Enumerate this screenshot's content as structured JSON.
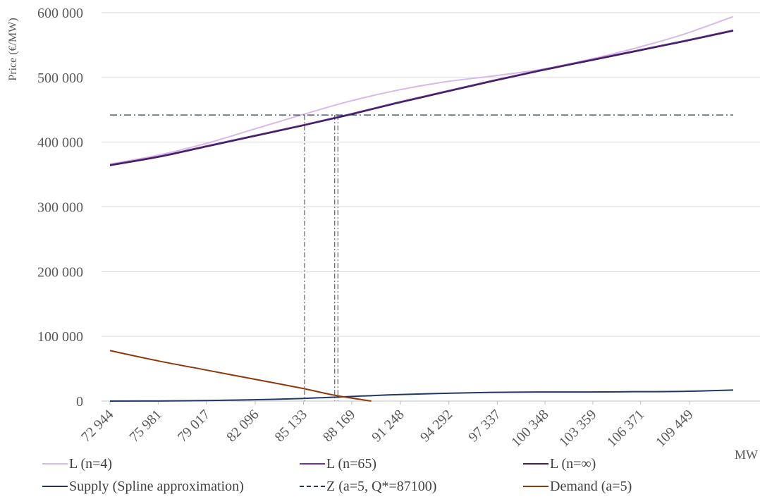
{
  "chart_data": {
    "type": "line",
    "ylabel": "Price (€/MW)",
    "xlabel": "MW",
    "ylim": [
      0,
      600000
    ],
    "y_ticks": [
      0,
      100000,
      200000,
      300000,
      400000,
      500000,
      600000
    ],
    "y_tick_labels": [
      "0",
      "100 000",
      "200 000",
      "300 000",
      "400 000",
      "500 000",
      "600 000"
    ],
    "x_tick_labels": [
      "72 944",
      "75 981",
      "79 017",
      "82 096",
      "85 133",
      "88 169",
      "91 248",
      "94 292",
      "97 337",
      "100 348",
      "103 359",
      "106 371",
      "109 449"
    ],
    "x_tick_values": [
      72944,
      75981,
      79017,
      82096,
      85133,
      88169,
      91248,
      94292,
      97337,
      100348,
      103359,
      106371,
      109449
    ],
    "xlim": [
      72944,
      112200
    ],
    "grid": "horizontal",
    "legend_position": "bottom",
    "series": [
      {
        "name": "L (n=4)",
        "color": "#d8b8e8",
        "style": "solid",
        "x": [
          72944,
          76000,
          79000,
          82000,
          85000,
          88000,
          91000,
          94000,
          97000,
          100000,
          103000,
          106000,
          109000,
          112200
        ],
        "y": [
          366000,
          380000,
          398000,
          420000,
          442000,
          463000,
          480000,
          493000,
          502000,
          512000,
          527000,
          545000,
          566000,
          594000
        ]
      },
      {
        "name": "L (n=65)",
        "color": "#7030a0",
        "style": "solid",
        "x": [
          72944,
          76000,
          79000,
          82000,
          85000,
          88000,
          91000,
          94000,
          97000,
          100000,
          103000,
          106000,
          109000,
          112200
        ],
        "y": [
          365000,
          378000,
          394000,
          410000,
          426000,
          443000,
          461000,
          478000,
          495000,
          511000,
          526000,
          541000,
          556000,
          573000
        ]
      },
      {
        "name": "L (n=∞)",
        "color": "#3f1f5c",
        "style": "solid",
        "x": [
          72944,
          76000,
          79000,
          82000,
          85000,
          88000,
          91000,
          94000,
          97000,
          100000,
          103000,
          106000,
          109000,
          112200
        ],
        "y": [
          364000,
          377000,
          393000,
          409000,
          425000,
          442000,
          460000,
          477000,
          494000,
          510000,
          525000,
          540000,
          555000,
          572000
        ]
      },
      {
        "name": "Supply (Spline approximation)",
        "color": "#1f3864",
        "style": "solid",
        "x": [
          72944,
          76000,
          79000,
          82000,
          85000,
          86500,
          88000,
          89500,
          91000,
          94000,
          97000,
          100000,
          103000,
          106000,
          109000,
          112200
        ],
        "y": [
          0,
          200,
          800,
          2000,
          4000,
          5500,
          7000,
          8500,
          10000,
          12000,
          13500,
          14000,
          14000,
          14500,
          15000,
          17000
        ]
      },
      {
        "name": "Z (a=5, Q*=87100)",
        "color": "#1f3864",
        "style": "dashdot",
        "x": [
          72944,
          112200
        ],
        "y": [
          442000,
          442000
        ]
      },
      {
        "name": "Demand (a=5)",
        "color": "#8b3a0e",
        "style": "solid",
        "x": [
          72944,
          76000,
          79000,
          82000,
          85000,
          87100,
          89400
        ],
        "y": [
          78000,
          62000,
          48000,
          34000,
          20000,
          9000,
          0
        ]
      }
    ],
    "drop_lines_x": [
      85200,
      87100,
      87300
    ]
  }
}
